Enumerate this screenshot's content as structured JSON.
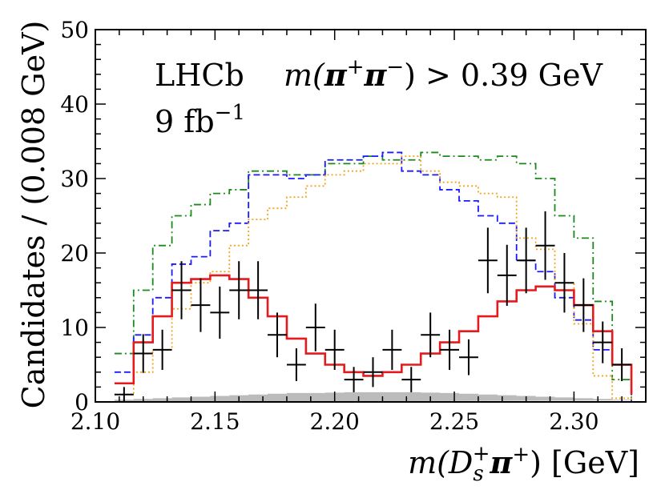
{
  "chart_data": {
    "type": "histogram",
    "xlabel_parts": [
      "m(",
      "D",
      "s",
      "+",
      "π",
      "+",
      ") [GeV]"
    ],
    "ylabel": "Candidates / (0.008 GeV)",
    "xlim": [
      2.1,
      2.33
    ],
    "ylim": [
      0,
      50
    ],
    "xticks": [
      {
        "value": 2.1,
        "label": "2.10"
      },
      {
        "value": 2.15,
        "label": "2.15"
      },
      {
        "value": 2.2,
        "label": "2.20"
      },
      {
        "value": 2.25,
        "label": "2.25"
      },
      {
        "value": 2.3,
        "label": "2.30"
      }
    ],
    "yticks": [
      {
        "value": 0,
        "label": "0"
      },
      {
        "value": 10,
        "label": "10"
      },
      {
        "value": 20,
        "label": "20"
      },
      {
        "value": 30,
        "label": "30"
      },
      {
        "value": 40,
        "label": "40"
      },
      {
        "value": 50,
        "label": "50"
      }
    ],
    "annotations": {
      "experiment": "LHCb",
      "lumi_value": "9 fb",
      "lumi_exp": "−1",
      "cut_parts": [
        "m(",
        "π",
        "+",
        "π",
        "−",
        ") > 0.39 GeV"
      ]
    },
    "bin_edges": [
      2.108,
      2.116,
      2.124,
      2.132,
      2.14,
      2.148,
      2.156,
      2.164,
      2.172,
      2.18,
      2.188,
      2.196,
      2.204,
      2.212,
      2.22,
      2.228,
      2.236,
      2.244,
      2.252,
      2.26,
      2.268,
      2.276,
      2.284,
      2.292,
      2.3,
      2.308,
      2.316,
      2.324
    ],
    "data_points": [
      {
        "x": 2.112,
        "y": 1,
        "err": 1
      },
      {
        "x": 2.12,
        "y": 6.5,
        "err": 2.6
      },
      {
        "x": 2.128,
        "y": 7,
        "err": 2.7
      },
      {
        "x": 2.136,
        "y": 15,
        "err": 3.9
      },
      {
        "x": 2.144,
        "y": 13,
        "err": 3.6
      },
      {
        "x": 2.152,
        "y": 12,
        "err": 3.5
      },
      {
        "x": 2.16,
        "y": 15,
        "err": 3.9
      },
      {
        "x": 2.168,
        "y": 15,
        "err": 3.9
      },
      {
        "x": 2.176,
        "y": 9,
        "err": 3
      },
      {
        "x": 2.184,
        "y": 5,
        "err": 2.2
      },
      {
        "x": 2.192,
        "y": 10,
        "err": 3.2
      },
      {
        "x": 2.2,
        "y": 7,
        "err": 2.7
      },
      {
        "x": 2.208,
        "y": 3,
        "err": 1.7
      },
      {
        "x": 2.216,
        "y": 4,
        "err": 2
      },
      {
        "x": 2.224,
        "y": 7,
        "err": 2.7
      },
      {
        "x": 2.232,
        "y": 3,
        "err": 1.7
      },
      {
        "x": 2.24,
        "y": 9,
        "err": 3
      },
      {
        "x": 2.248,
        "y": 7,
        "err": 2.7
      },
      {
        "x": 2.256,
        "y": 6,
        "err": 2.4
      },
      {
        "x": 2.264,
        "y": 19,
        "err": 4.4
      },
      {
        "x": 2.272,
        "y": 17,
        "err": 4.1
      },
      {
        "x": 2.28,
        "y": 19,
        "err": 4.4
      },
      {
        "x": 2.288,
        "y": 21,
        "err": 4.6
      },
      {
        "x": 2.296,
        "y": 16,
        "err": 4
      },
      {
        "x": 2.304,
        "y": 13,
        "err": 3.6
      },
      {
        "x": 2.312,
        "y": 8,
        "err": 2.8
      },
      {
        "x": 2.32,
        "y": 5,
        "err": 2.2
      }
    ],
    "series": [
      {
        "name": "green-dashdot",
        "color": "#1a8a1a",
        "style": "dashdot",
        "values": [
          6.5,
          15,
          21,
          25,
          26.5,
          28,
          28.5,
          31,
          31,
          30.5,
          30.5,
          32,
          32,
          33,
          32.5,
          32.5,
          33.5,
          33,
          33,
          32.5,
          33,
          32,
          30,
          25,
          22,
          13.5,
          3,
          0
        ]
      },
      {
        "name": "blue-dashed",
        "color": "#1a1aff",
        "style": "dashed",
        "values": [
          4,
          9,
          14,
          18.5,
          19.5,
          23,
          24,
          30.5,
          30.5,
          30,
          30.5,
          32.5,
          32.5,
          33,
          33.5,
          31,
          30.5,
          28.5,
          27,
          25,
          24,
          19,
          17.5,
          14,
          11,
          7,
          5,
          0
        ]
      },
      {
        "name": "orange-dotted",
        "color": "#f5a31a",
        "style": "dotted",
        "values": [
          1,
          4,
          7,
          12.5,
          16,
          17.5,
          21,
          24.5,
          26,
          27.5,
          29,
          30.5,
          31,
          32,
          32,
          33,
          31,
          29.5,
          29,
          28,
          27.5,
          22,
          20.5,
          16,
          10.5,
          3.5,
          0.5,
          0
        ]
      },
      {
        "name": "red-solid",
        "color": "#e41a1c",
        "style": "solid",
        "values": [
          2.5,
          8,
          11.5,
          16,
          16.5,
          17,
          16.5,
          14,
          11.5,
          8.5,
          6.5,
          5,
          4,
          3.5,
          4,
          5,
          6.5,
          8,
          9.5,
          11.5,
          13.5,
          15,
          15.5,
          15,
          13,
          9.5,
          5,
          1
        ]
      },
      {
        "name": "grey-background",
        "color": "#bbbbbb",
        "style": "fill",
        "values": [
          0.3,
          0.4,
          0.5,
          0.6,
          0.7,
          0.8,
          0.9,
          1.0,
          1.1,
          1.2,
          1.2,
          1.25,
          1.3,
          1.3,
          1.3,
          1.3,
          1.25,
          1.2,
          1.1,
          1.0,
          0.9,
          0.8,
          0.7,
          0.6,
          0.5,
          0.4,
          0.3,
          0.2
        ]
      }
    ]
  }
}
